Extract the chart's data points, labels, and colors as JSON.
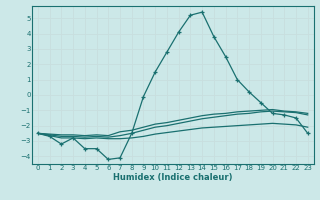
{
  "xlabel": "Humidex (Indice chaleur)",
  "ylabel": "",
  "bg_color": "#cce8e8",
  "line_color": "#1a7070",
  "grid_color": "#c8dede",
  "xlim": [
    -0.5,
    23.5
  ],
  "ylim": [
    -4.5,
    5.8
  ],
  "yticks": [
    -4,
    -3,
    -2,
    -1,
    0,
    1,
    2,
    3,
    4,
    5
  ],
  "xticks": [
    0,
    1,
    2,
    3,
    4,
    5,
    6,
    7,
    8,
    9,
    10,
    11,
    12,
    13,
    14,
    15,
    16,
    17,
    18,
    19,
    20,
    21,
    22,
    23
  ],
  "line1_x": [
    0,
    1,
    2,
    3,
    4,
    5,
    6,
    7,
    8,
    9,
    10,
    11,
    12,
    13,
    14,
    15,
    16,
    17,
    18,
    19,
    20,
    21,
    22,
    23
  ],
  "line1_y": [
    -2.5,
    -2.7,
    -3.2,
    -2.8,
    -3.5,
    -3.5,
    -4.2,
    -4.1,
    -2.5,
    -0.1,
    1.5,
    2.8,
    4.1,
    5.2,
    5.4,
    3.8,
    2.5,
    1.0,
    0.2,
    -0.5,
    -1.2,
    -1.3,
    -1.5,
    -2.5
  ],
  "line2_x": [
    0,
    2,
    3,
    4,
    5,
    6,
    7,
    8,
    9,
    10,
    11,
    12,
    13,
    14,
    15,
    16,
    17,
    18,
    19,
    20,
    21,
    22,
    23
  ],
  "line2_y": [
    -2.5,
    -2.6,
    -2.6,
    -2.65,
    -2.6,
    -2.65,
    -2.4,
    -2.3,
    -2.1,
    -1.9,
    -1.8,
    -1.65,
    -1.5,
    -1.35,
    -1.25,
    -1.2,
    -1.1,
    -1.05,
    -1.0,
    -0.95,
    -1.05,
    -1.1,
    -1.2
  ],
  "line3_x": [
    0,
    2,
    3,
    4,
    5,
    6,
    7,
    8,
    9,
    10,
    11,
    12,
    13,
    14,
    15,
    16,
    17,
    18,
    19,
    20,
    21,
    22,
    23
  ],
  "line3_y": [
    -2.5,
    -2.7,
    -2.7,
    -2.75,
    -2.7,
    -2.75,
    -2.65,
    -2.5,
    -2.3,
    -2.1,
    -2.0,
    -1.85,
    -1.7,
    -1.55,
    -1.45,
    -1.35,
    -1.25,
    -1.2,
    -1.1,
    -1.05,
    -1.1,
    -1.15,
    -1.3
  ],
  "line4_x": [
    0,
    2,
    3,
    4,
    5,
    6,
    7,
    8,
    9,
    10,
    11,
    12,
    13,
    14,
    15,
    16,
    17,
    18,
    19,
    20,
    21,
    22,
    23
  ],
  "line4_y": [
    -2.5,
    -2.8,
    -2.8,
    -2.85,
    -2.8,
    -2.85,
    -2.85,
    -2.8,
    -2.7,
    -2.55,
    -2.45,
    -2.35,
    -2.25,
    -2.15,
    -2.1,
    -2.05,
    -2.0,
    -1.95,
    -1.9,
    -1.85,
    -1.9,
    -1.95,
    -2.1
  ]
}
